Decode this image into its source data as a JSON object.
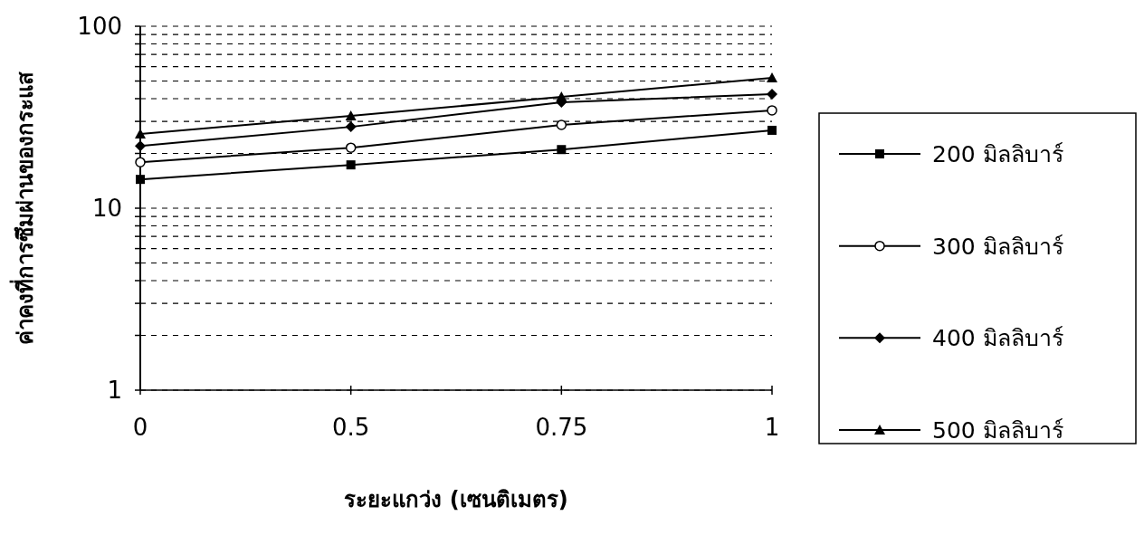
{
  "chart_data": {
    "type": "line",
    "xlabel": "ระยะแกว่ง (เซนติเมตร)",
    "ylabel": "ค่าคงที่การซึมผ่านของกระแส",
    "categories": [
      "0",
      "0.5",
      "0.75",
      "1"
    ],
    "series": [
      {
        "name": "200 มิลลิบาร์",
        "color": "#000000",
        "marker": "square",
        "values": [
          14.4,
          17.3,
          21.0,
          26.8
        ]
      },
      {
        "name": "300 มิลลิบาร์",
        "color": "#000000",
        "marker": "circle",
        "values": [
          17.9,
          21.5,
          28.7,
          34.5
        ]
      },
      {
        "name": "400 มิลลิบาร์",
        "color": "#000000",
        "marker": "diamond",
        "values": [
          22.0,
          28.0,
          38.2,
          42.4
        ]
      },
      {
        "name": "500 มิลลิบาร์",
        "color": "#000000",
        "marker": "triangle",
        "values": [
          25.6,
          32.2,
          40.9,
          52.0
        ]
      }
    ],
    "log": true,
    "ylim": [
      1,
      100
    ],
    "yticks": [
      1,
      {
        "value": 2,
        "label": null
      },
      {
        "value": 3,
        "label": null
      },
      {
        "value": 4,
        "label": null
      },
      {
        "value": 5,
        "label": null
      },
      {
        "value": 6,
        "label": null
      },
      {
        "value": 7,
        "label": null
      },
      {
        "value": 8,
        "label": null
      },
      {
        "value": 9,
        "label": null
      },
      10,
      {
        "value": 20,
        "label": null
      },
      {
        "value": 30,
        "label": null
      },
      {
        "value": 40,
        "label": null
      },
      {
        "value": 50,
        "label": null
      },
      {
        "value": 60,
        "label": null
      },
      {
        "value": 70,
        "label": null
      },
      {
        "value": 80,
        "label": null
      },
      {
        "value": 90,
        "label": null
      },
      100
    ],
    "grid": "y",
    "legend": "right",
    "line_style": "solid"
  }
}
